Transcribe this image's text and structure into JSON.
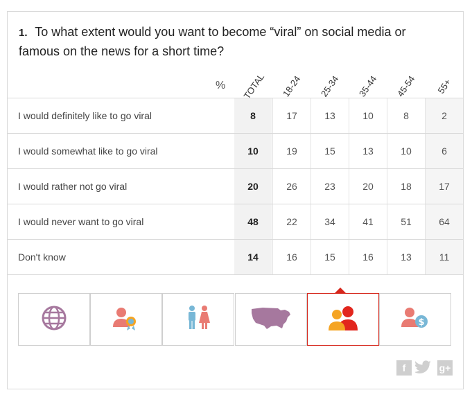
{
  "question": {
    "number": "1.",
    "text": "To what extent would you want to become “viral” on social media or famous on the news for a short time?"
  },
  "table": {
    "percent_symbol": "%",
    "columns": [
      "TOTAL",
      "18-24",
      "25-34",
      "35-44",
      "45-54",
      "55+"
    ],
    "rows": [
      {
        "label": "I would definitely like to go viral",
        "values": [
          "8",
          "17",
          "13",
          "10",
          "8",
          "2"
        ]
      },
      {
        "label": "I would somewhat like to go viral",
        "values": [
          "10",
          "19",
          "15",
          "13",
          "10",
          "6"
        ]
      },
      {
        "label": "I would rather not go viral",
        "values": [
          "20",
          "26",
          "23",
          "20",
          "18",
          "17"
        ]
      },
      {
        "label": "I would never want to go viral",
        "values": [
          "48",
          "22",
          "34",
          "41",
          "51",
          "64"
        ]
      },
      {
        "label": "Don't know",
        "values": [
          "14",
          "16",
          "15",
          "16",
          "13",
          "11"
        ]
      }
    ]
  },
  "tabs": [
    {
      "icon": "globe-icon",
      "active": false
    },
    {
      "icon": "person-award-icon",
      "active": false
    },
    {
      "icon": "gender-icon",
      "active": false
    },
    {
      "icon": "usa-map-icon",
      "active": false
    },
    {
      "icon": "age-groups-icon",
      "active": true
    },
    {
      "icon": "person-income-icon",
      "active": false
    }
  ],
  "social": {
    "facebook": "f",
    "google_plus": "g+"
  },
  "colors": {
    "accent_red": "#d6271c",
    "globe_purple": "#a6789e",
    "salmon": "#e97b73",
    "blue": "#78b7d6",
    "orange": "#f5a423",
    "red": "#e2261d"
  }
}
